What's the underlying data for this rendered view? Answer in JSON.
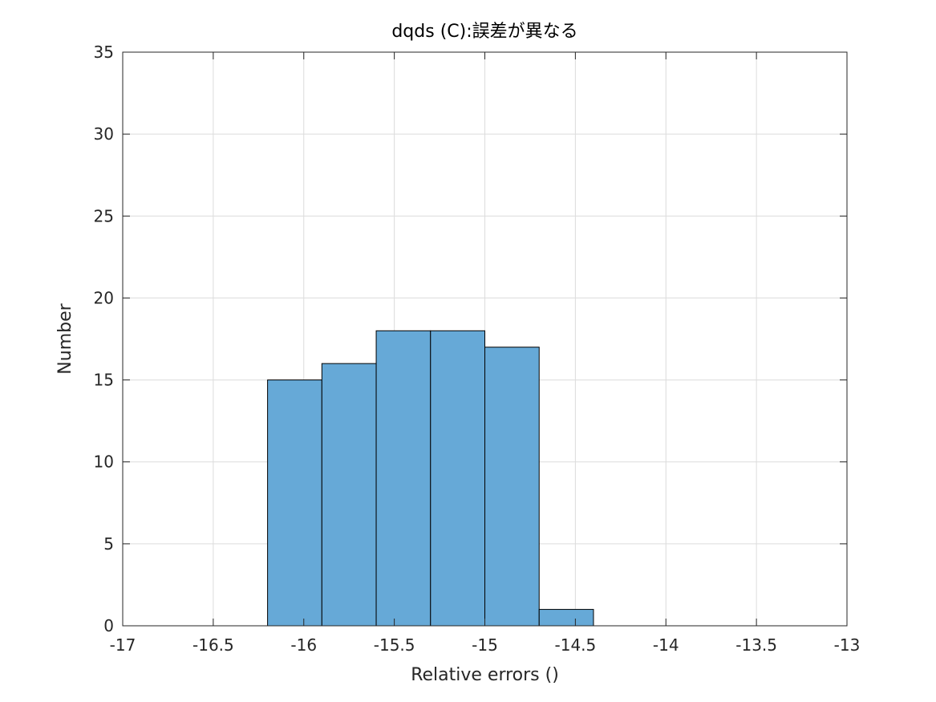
{
  "chart_data": {
    "type": "bar",
    "title": "dqds (C):誤差が異なる",
    "xlabel": "Relative errors ()",
    "ylabel": "Number",
    "xlim": [
      -17,
      -13
    ],
    "ylim": [
      0,
      35
    ],
    "xticks": [
      -17,
      -16.5,
      -16,
      -15.5,
      -15,
      -14.5,
      -14,
      -13.5,
      -13
    ],
    "xtick_labels": [
      "-17",
      "-16.5",
      "-16",
      "-15.5",
      "-15",
      "-14.5",
      "-14",
      "-13.5",
      "-13"
    ],
    "yticks": [
      0,
      5,
      10,
      15,
      20,
      25,
      30,
      35
    ],
    "ytick_labels": [
      "0",
      "5",
      "10",
      "15",
      "20",
      "25",
      "30",
      "35"
    ],
    "grid": true,
    "bins": [
      {
        "x0": -16.2,
        "x1": -15.9,
        "value": 15
      },
      {
        "x0": -15.9,
        "x1": -15.6,
        "value": 16
      },
      {
        "x0": -15.6,
        "x1": -15.3,
        "value": 18
      },
      {
        "x0": -15.3,
        "x1": -15.0,
        "value": 18
      },
      {
        "x0": -15.0,
        "x1": -14.7,
        "value": 17
      },
      {
        "x0": -14.7,
        "x1": -14.4,
        "value": 1
      }
    ],
    "colors": {
      "bar_fill": "#66a9d7",
      "bar_edge": "#000000",
      "grid": "#dcdcdc",
      "axis": "#262626"
    }
  }
}
